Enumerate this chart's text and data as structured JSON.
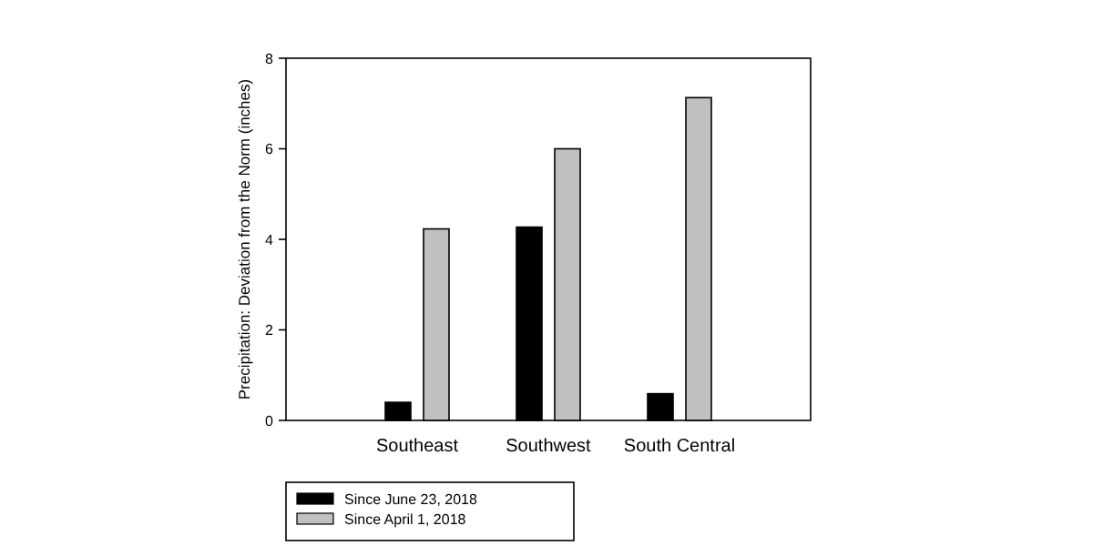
{
  "chart_data": {
    "type": "bar",
    "ylabel": "Precipitation: Deviation from the Norm (inches)",
    "categories": [
      "Southeast",
      "Southwest",
      "South Central"
    ],
    "series": [
      {
        "name": "Since June 23, 2018",
        "color": "#000000",
        "values": [
          0.4,
          4.27,
          0.59
        ]
      },
      {
        "name": "Since April 1, 2018",
        "color": "#c0c0c0",
        "values": [
          4.23,
          6.0,
          7.13
        ]
      }
    ],
    "ylim": [
      0,
      8
    ],
    "yticks": [
      0,
      2,
      4,
      6,
      8
    ],
    "legend": "bottom left"
  }
}
